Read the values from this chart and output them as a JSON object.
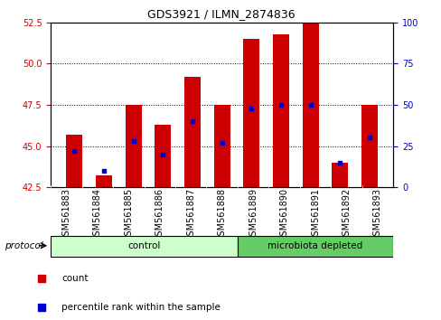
{
  "title": "GDS3921 / ILMN_2874836",
  "samples": [
    "GSM561883",
    "GSM561884",
    "GSM561885",
    "GSM561886",
    "GSM561887",
    "GSM561888",
    "GSM561889",
    "GSM561890",
    "GSM561891",
    "GSM561892",
    "GSM561893"
  ],
  "count_values": [
    45.7,
    43.2,
    47.5,
    46.3,
    49.2,
    47.5,
    51.5,
    51.8,
    52.5,
    44.0,
    47.5
  ],
  "percentile_values": [
    22,
    10,
    28,
    20,
    40,
    27,
    48,
    50,
    50,
    15,
    30
  ],
  "ylim_left": [
    42.5,
    52.5
  ],
  "ylim_right": [
    0,
    100
  ],
  "yticks_left": [
    42.5,
    45.0,
    47.5,
    50.0,
    52.5
  ],
  "yticks_right": [
    0,
    25,
    50,
    75,
    100
  ],
  "bar_color": "#cc0000",
  "percentile_color": "#0000cc",
  "control_color": "#ccffcc",
  "microbiota_color": "#66cc66",
  "n_control": 6,
  "n_micro": 5,
  "dotted_lines": [
    45.0,
    47.5,
    50.0
  ],
  "title_fontsize": 9,
  "tick_fontsize": 7,
  "label_fontsize": 7.5,
  "proto_fontsize": 7.5,
  "legend_fontsize": 7.5
}
